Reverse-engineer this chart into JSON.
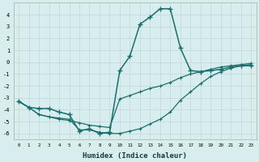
{
  "xlabel": "Humidex (Indice chaleur)",
  "background_color": "#d8eded",
  "grid_color": "#c8dede",
  "line_color": "#1a6e6e",
  "xlim": [
    -0.5,
    23.5
  ],
  "ylim": [
    -6.5,
    5.0
  ],
  "xticks": [
    0,
    1,
    2,
    3,
    4,
    5,
    6,
    7,
    8,
    9,
    10,
    11,
    12,
    13,
    14,
    15,
    16,
    17,
    18,
    19,
    20,
    21,
    22,
    23
  ],
  "yticks": [
    -6,
    -5,
    -4,
    -3,
    -2,
    -1,
    0,
    1,
    2,
    3,
    4
  ],
  "series1_x": [
    0,
    1,
    2,
    3,
    4,
    5,
    6,
    7,
    8,
    9,
    10,
    11,
    12,
    13,
    14,
    15,
    16,
    17,
    18,
    19,
    20,
    21,
    22,
    23
  ],
  "series1_y": [
    -3.3,
    -3.8,
    -4.4,
    -4.6,
    -4.8,
    -4.9,
    -5.1,
    -5.3,
    -5.4,
    -5.5,
    -3.1,
    -2.8,
    -2.5,
    -2.2,
    -2.0,
    -1.7,
    -1.3,
    -1.0,
    -0.8,
    -0.6,
    -0.4,
    -0.3,
    -0.2,
    -0.1
  ],
  "series2_x": [
    0,
    1,
    2,
    3,
    4,
    5,
    6,
    7,
    8,
    9,
    10,
    11,
    12,
    13,
    14,
    15,
    16,
    17,
    18,
    19,
    20,
    21,
    22,
    23
  ],
  "series2_y": [
    -3.3,
    -3.8,
    -4.4,
    -4.6,
    -4.7,
    -4.8,
    -5.7,
    -5.7,
    -5.9,
    -6.0,
    -6.0,
    -5.8,
    -5.6,
    -5.2,
    -4.8,
    -4.2,
    -3.2,
    -2.5,
    -1.8,
    -1.2,
    -0.8,
    -0.5,
    -0.3,
    -0.2
  ],
  "series3_x": [
    0,
    1,
    2,
    3,
    4,
    5,
    6,
    7,
    8,
    9,
    10,
    11,
    12,
    13,
    14,
    15,
    16,
    17,
    18,
    19,
    20,
    21,
    22,
    23
  ],
  "series3_y": [
    -3.3,
    -3.8,
    -3.9,
    -3.9,
    -4.2,
    -4.4,
    -5.8,
    -5.6,
    -6.0,
    -5.9,
    -0.7,
    0.5,
    3.2,
    3.8,
    4.5,
    4.5,
    1.2,
    -0.7,
    -0.8,
    -0.7,
    -0.6,
    -0.4,
    -0.3,
    -0.3
  ]
}
